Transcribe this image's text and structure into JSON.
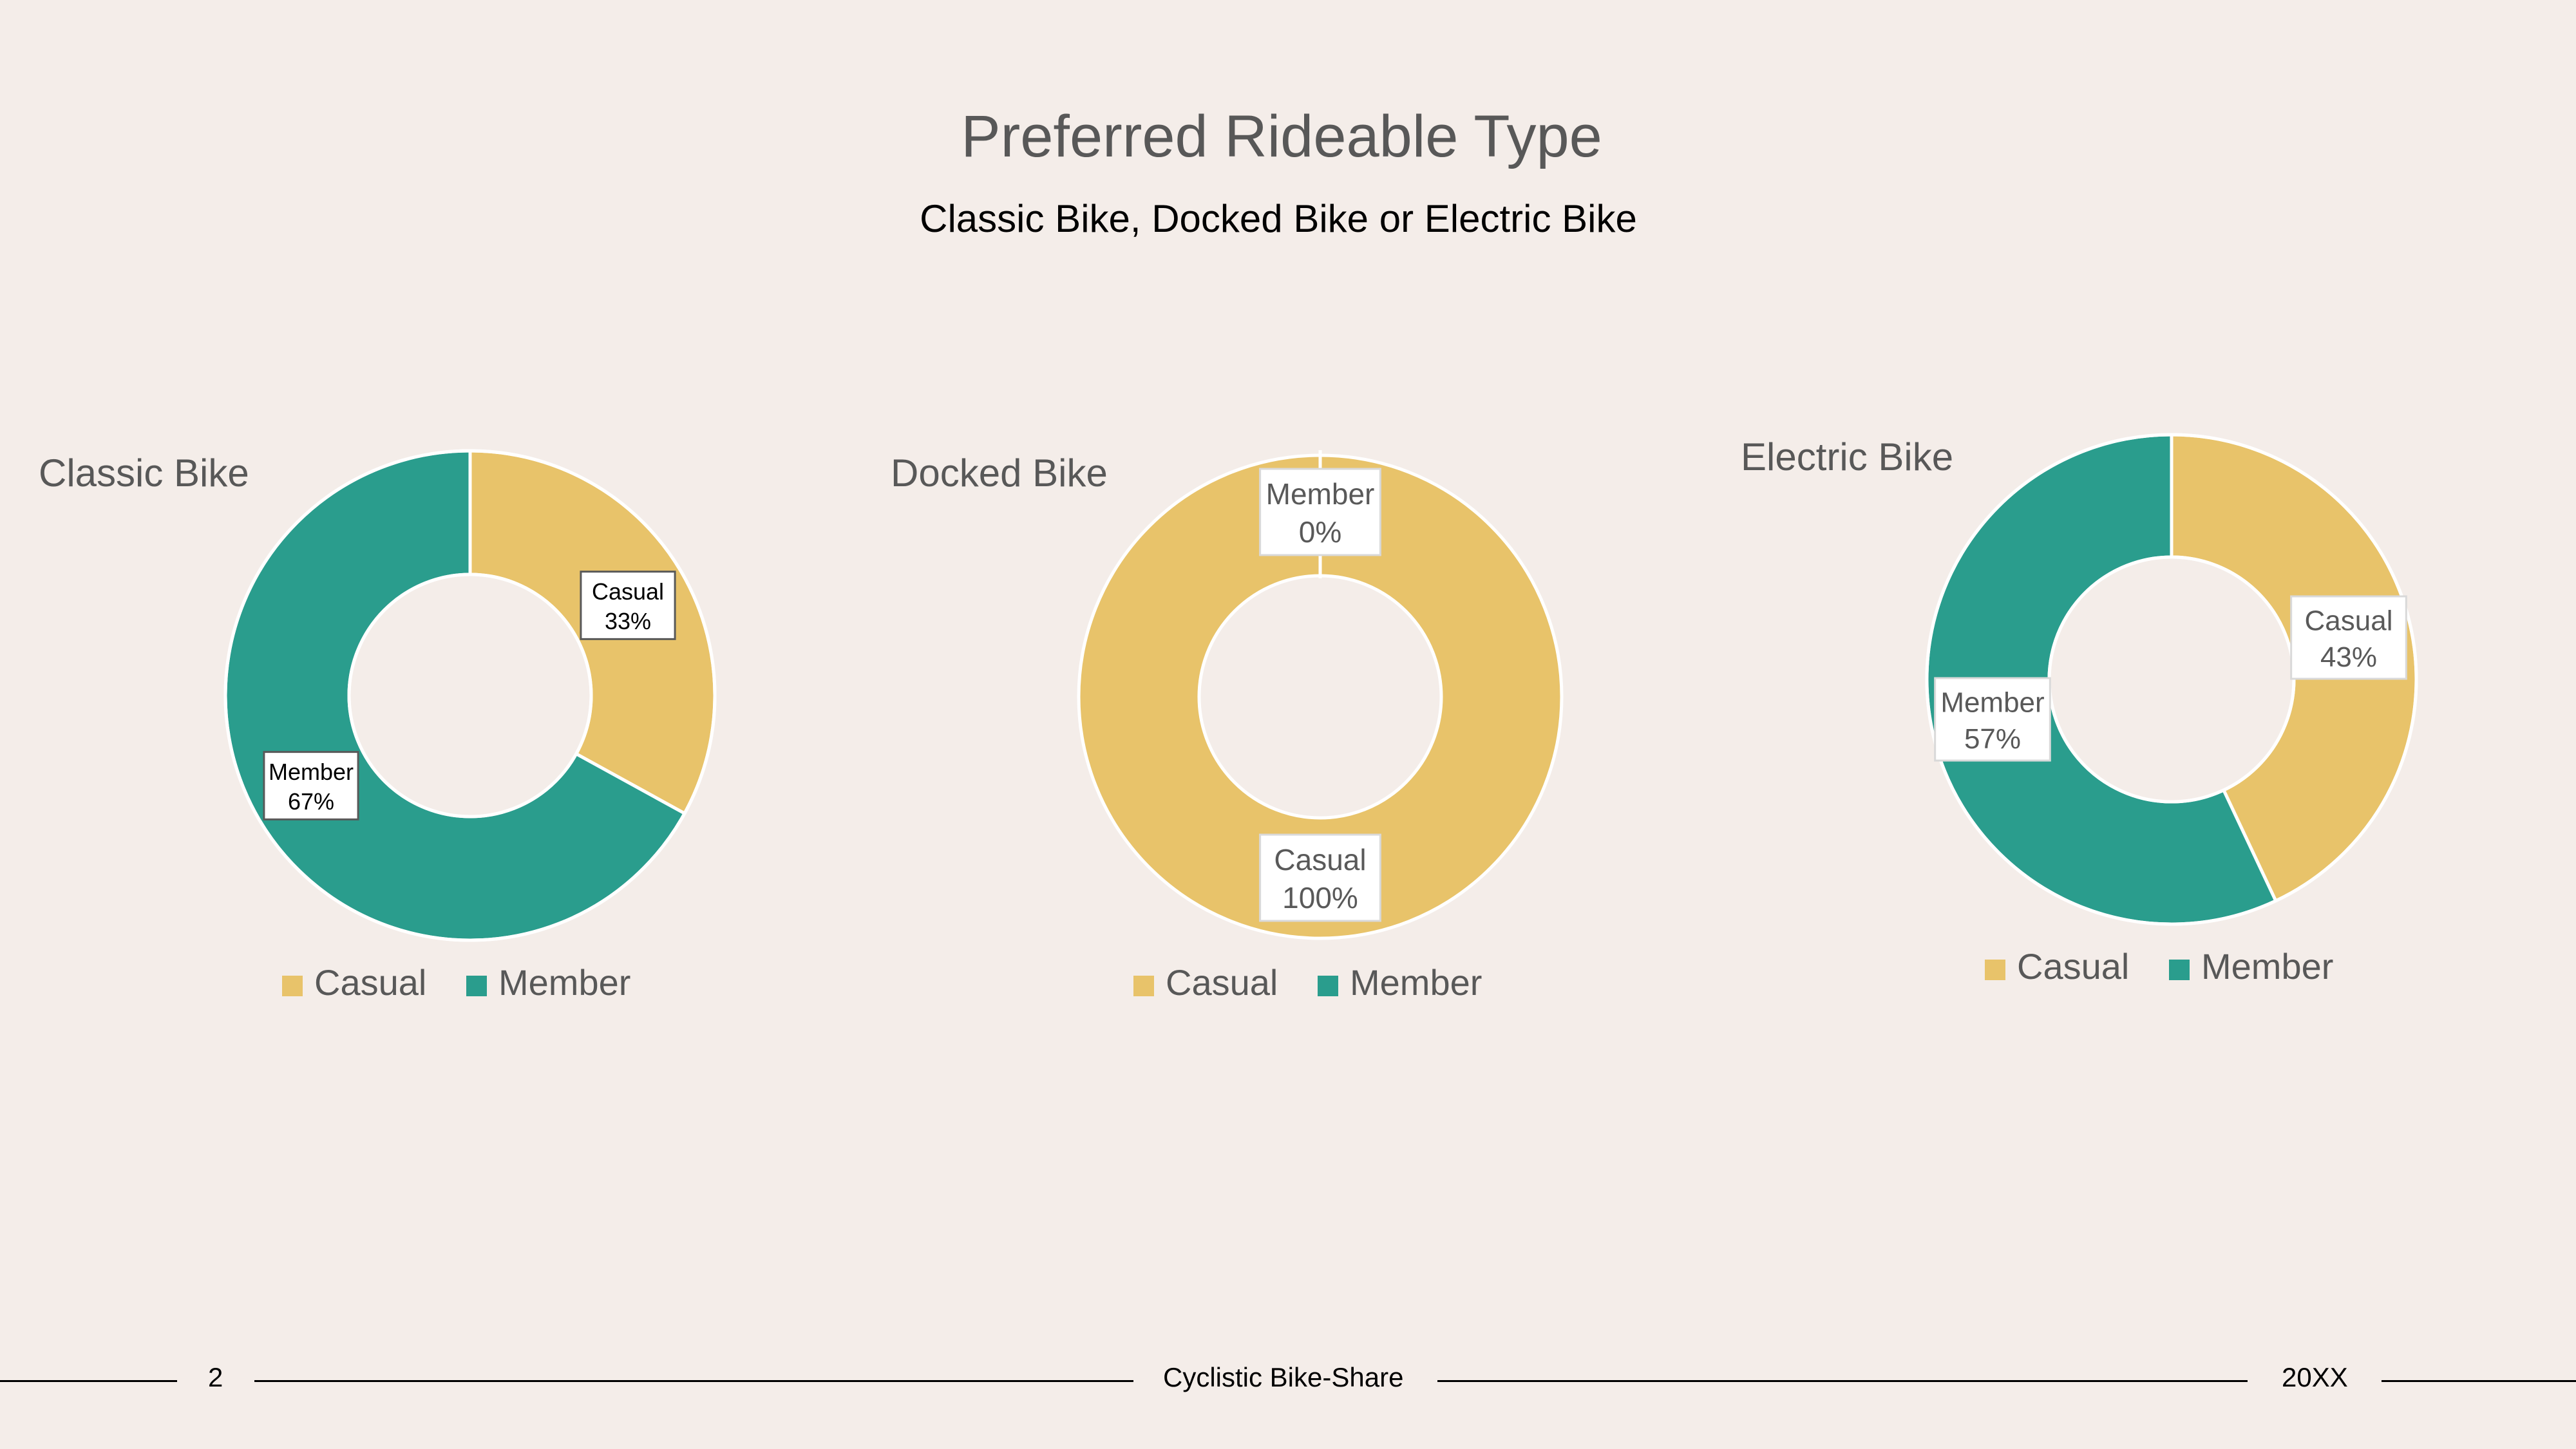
{
  "slide": {
    "title": "Preferred Rideable Type",
    "subtitle": "Classic Bike, Docked Bike or Electric Bike"
  },
  "colors": {
    "casual": "#e8c36a",
    "member": "#2a9d8d",
    "background": "#f4ede9"
  },
  "chart_data": [
    {
      "type": "pie",
      "title": "Classic Bike",
      "categories": [
        "Casual",
        "Member"
      ],
      "values": [
        33,
        67
      ],
      "data_labels": [
        "Casual\n33%",
        "Member\n67%"
      ],
      "legend": [
        "Casual",
        "Member"
      ],
      "legend_placement": "bottom"
    },
    {
      "type": "pie",
      "title": "Docked Bike",
      "categories": [
        "Casual",
        "Member"
      ],
      "values": [
        100,
        0
      ],
      "data_labels": [
        "Casual\n100%",
        "Member\n0%"
      ],
      "legend": [
        "Casual",
        "Member"
      ],
      "legend_placement": "bottom"
    },
    {
      "type": "pie",
      "title": "Electric Bike",
      "categories": [
        "Casual",
        "Member"
      ],
      "values": [
        43,
        57
      ],
      "data_labels": [
        "Casual\n43%",
        "Member\n57%"
      ],
      "legend": [
        "Casual",
        "Member"
      ],
      "legend_placement": "bottom"
    }
  ],
  "footer": {
    "page_number": "2",
    "center_text": "Cyclistic Bike-Share",
    "year": "20XX"
  }
}
